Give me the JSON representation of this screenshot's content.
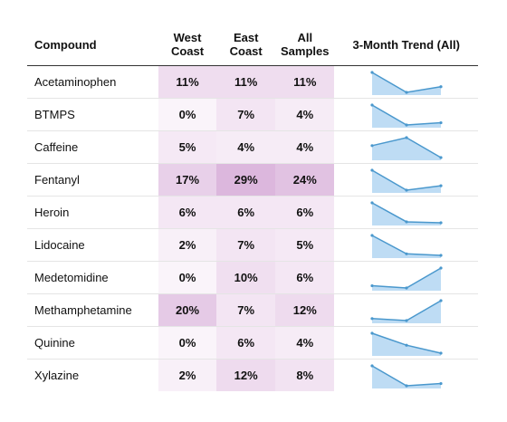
{
  "chart_data": {
    "type": "table",
    "columns": {
      "compound": "Compound",
      "west_l1": "West",
      "west_l2": "Coast",
      "east_l1": "East",
      "east_l2": "Coast",
      "all_l1": "All",
      "all_l2": "Samples",
      "trend": "3-Month Trend (All)"
    },
    "rows": [
      {
        "name": "Acetaminophen",
        "west": "11%",
        "east": "11%",
        "all": "11%",
        "west_v": 11,
        "east_v": 11,
        "all_v": 11,
        "trend": [
          17,
          10,
          12
        ]
      },
      {
        "name": "BTMPS",
        "west": "0%",
        "east": "7%",
        "all": "4%",
        "west_v": 0,
        "east_v": 7,
        "all_v": 4,
        "trend": [
          12,
          3,
          4
        ]
      },
      {
        "name": "Caffeine",
        "west": "5%",
        "east": "4%",
        "all": "4%",
        "west_v": 5,
        "east_v": 4,
        "all_v": 4,
        "trend": [
          5,
          7,
          2
        ]
      },
      {
        "name": "Fentanyl",
        "west": "17%",
        "east": "29%",
        "all": "24%",
        "west_v": 17,
        "east_v": 29,
        "all_v": 24,
        "trend": [
          31,
          22,
          24
        ]
      },
      {
        "name": "Heroin",
        "west": "6%",
        "east": "6%",
        "all": "6%",
        "west_v": 6,
        "east_v": 6,
        "all_v": 6,
        "trend": [
          8,
          4,
          3.8
        ]
      },
      {
        "name": "Lidocaine",
        "west": "2%",
        "east": "7%",
        "all": "5%",
        "west_v": 2,
        "east_v": 7,
        "all_v": 5,
        "trend": [
          9,
          3,
          2.5
        ]
      },
      {
        "name": "Medetomidine",
        "west": "0%",
        "east": "10%",
        "all": "6%",
        "west_v": 0,
        "east_v": 10,
        "all_v": 6,
        "trend": [
          2,
          1,
          10
        ]
      },
      {
        "name": "Methamphetamine",
        "west": "20%",
        "east": "7%",
        "all": "12%",
        "west_v": 20,
        "east_v": 7,
        "all_v": 12,
        "trend": [
          9,
          8,
          18
        ]
      },
      {
        "name": "Quinine",
        "west": "0%",
        "east": "6%",
        "all": "4%",
        "west_v": 0,
        "east_v": 6,
        "all_v": 4,
        "trend": [
          7,
          4,
          2
        ]
      },
      {
        "name": "Xylazine",
        "west": "2%",
        "east": "12%",
        "all": "8%",
        "west_v": 2,
        "east_v": 12,
        "all_v": 8,
        "trend": [
          13,
          4,
          5
        ]
      }
    ],
    "colors": {
      "cell_low": "#faf4fa",
      "cell_high": "#dcb7dd",
      "spark_line": "#4a98cd",
      "spark_fill": "#bedcf4"
    }
  }
}
